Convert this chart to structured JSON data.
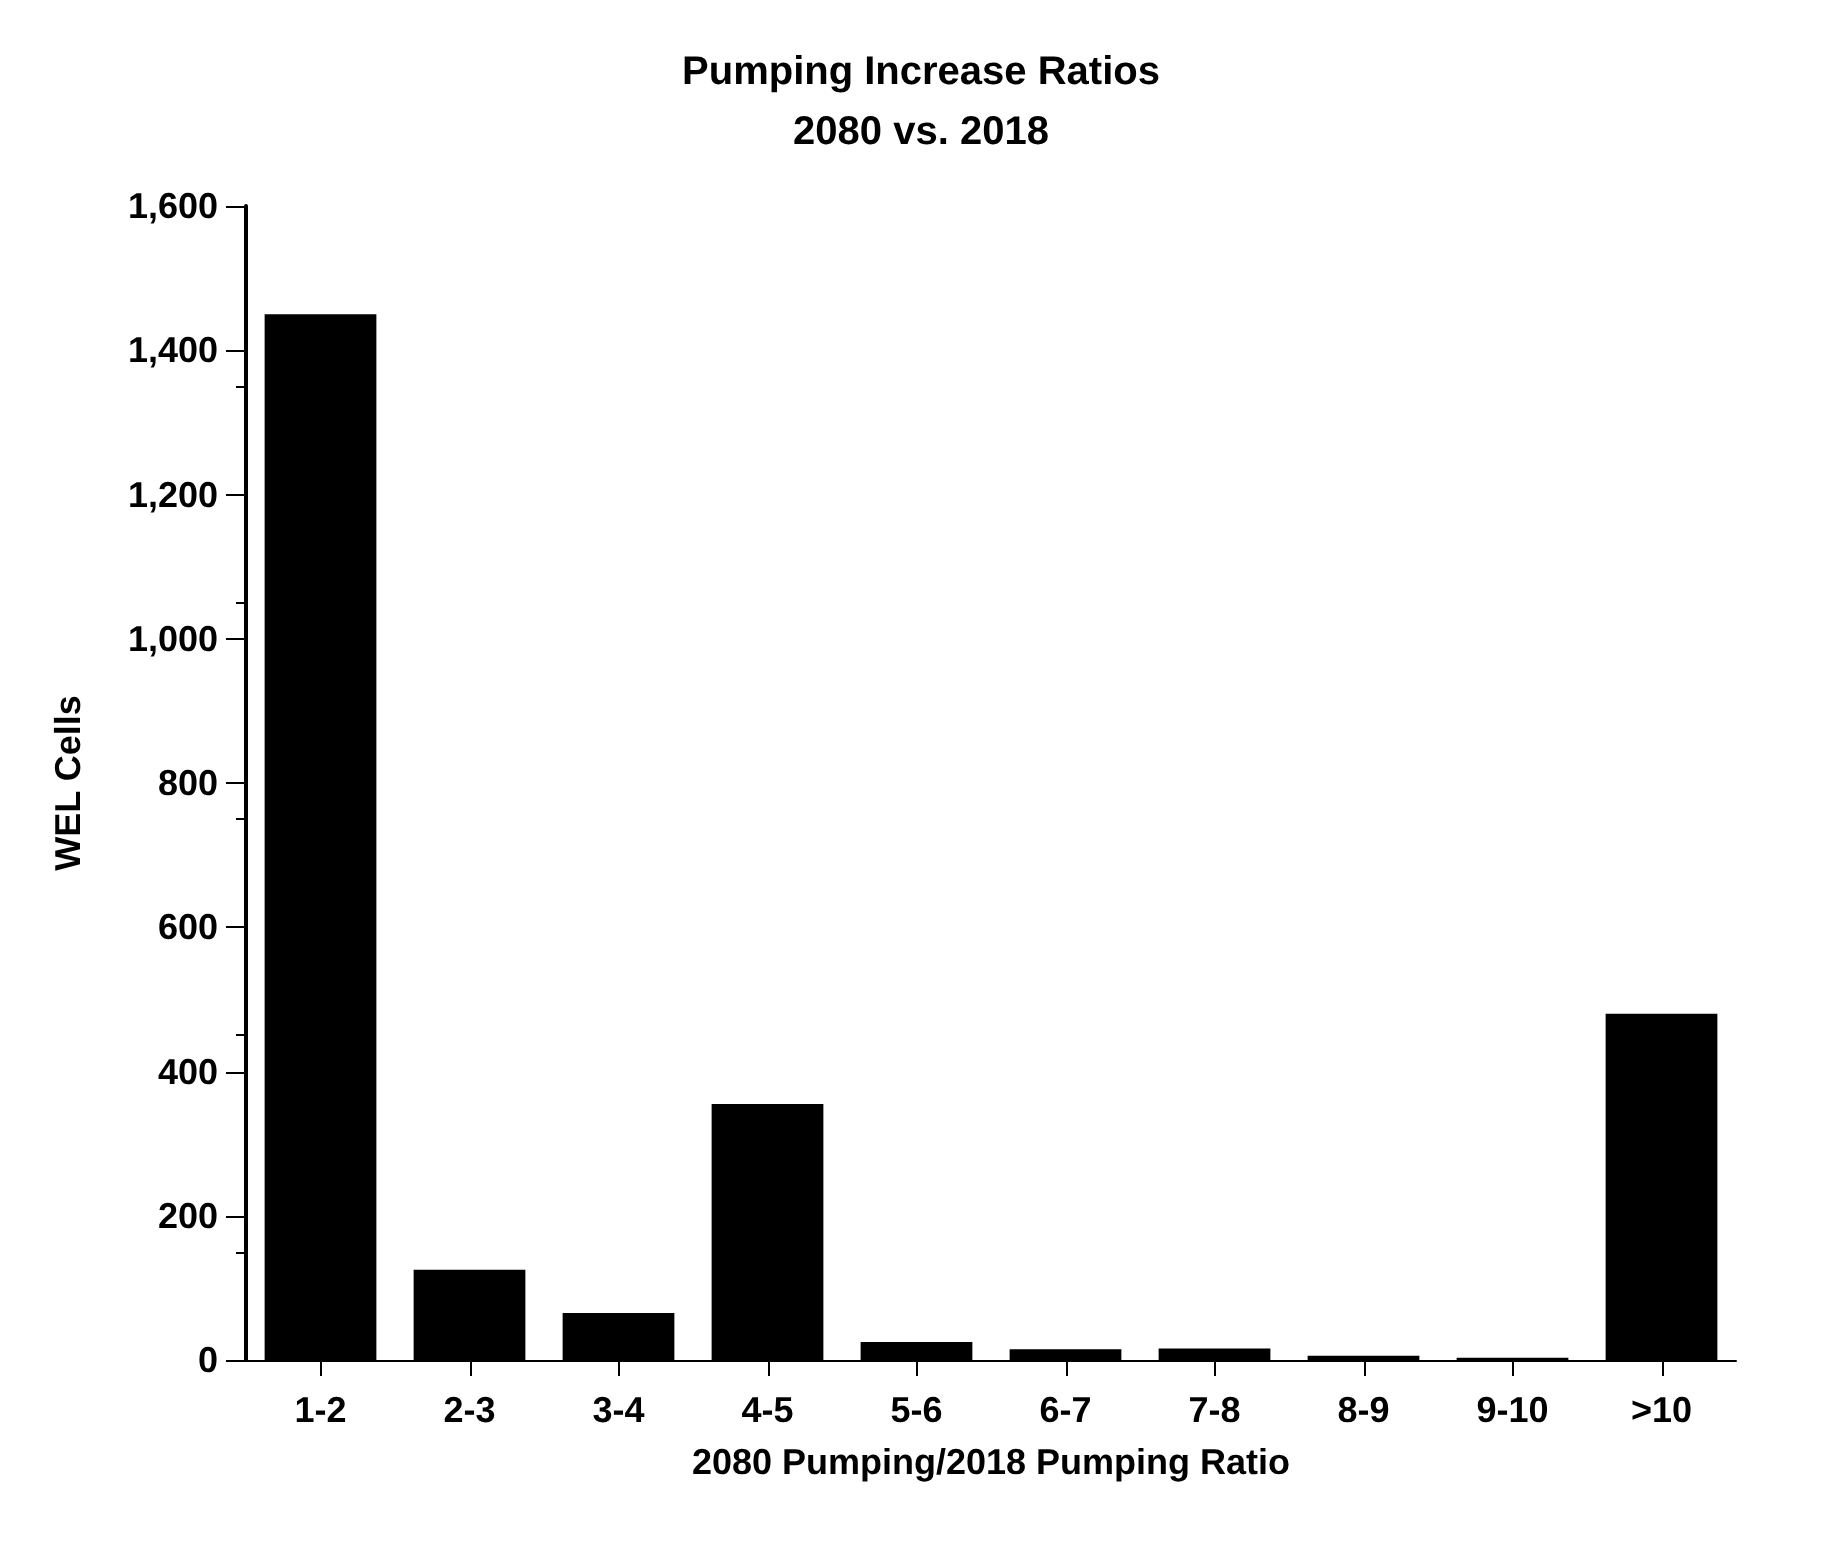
{
  "chart_data": {
    "type": "bar",
    "title": "Pumping Increase Ratios\n2080 vs. 2018",
    "xlabel": "2080 Pumping/2018 Pumping Ratio",
    "ylabel": "WEL Cells",
    "categories": [
      "1-2",
      "2-3",
      "3-4",
      "4-5",
      "5-6",
      "6-7",
      "7-8",
      "8-9",
      "9-10",
      ">10"
    ],
    "values": [
      1450,
      125,
      65,
      355,
      25,
      15,
      16,
      6,
      3,
      480
    ],
    "color": "#000000",
    "ylim": [
      0,
      1600
    ],
    "yticks": [
      {
        "value": 0,
        "label": "0"
      },
      {
        "value": 200,
        "label": "200"
      },
      {
        "value": 400,
        "label": "400"
      },
      {
        "value": 600,
        "label": "600"
      },
      {
        "value": 800,
        "label": "800"
      },
      {
        "value": 1000,
        "label": "1,000"
      },
      {
        "value": 1200,
        "label": "1,200"
      },
      {
        "value": 1400,
        "label": "1,400"
      },
      {
        "value": 1600,
        "label": "1,600"
      }
    ],
    "grid": false
  }
}
